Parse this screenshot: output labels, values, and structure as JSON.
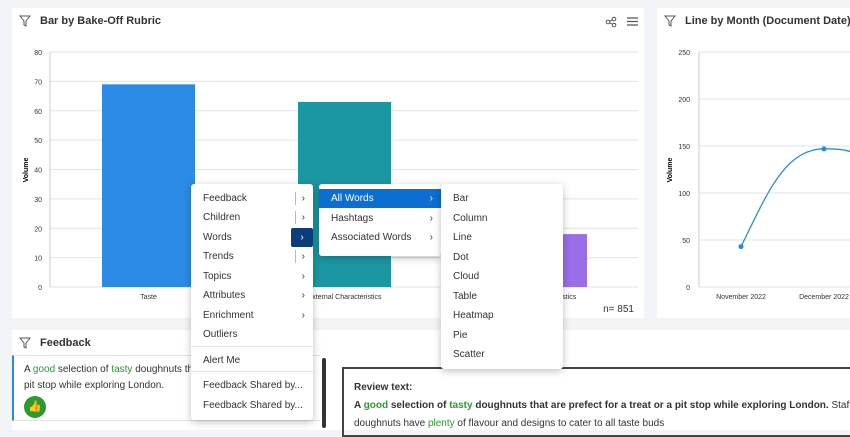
{
  "bar_panel": {
    "title": "Bar by Bake-Off Rubric",
    "n_label": "n= 851"
  },
  "line_panel": {
    "title": "Line by Month (Document Date)"
  },
  "chart_data": [
    {
      "type": "bar",
      "title": "Bar by Bake-Off Rubric",
      "ylabel": "Volume",
      "ylim": [
        0,
        80
      ],
      "yticks": [
        "0",
        "10",
        "20",
        "30",
        "40",
        "50",
        "60",
        "70",
        "80"
      ],
      "categories": [
        "Taste",
        "External Characteristics",
        "Internal Characteristics"
      ],
      "values": [
        69,
        63,
        18
      ],
      "colors": [
        "#2a8ae6",
        "#1b97a3",
        "#9a6ee8"
      ],
      "grid": true
    },
    {
      "type": "line",
      "title": "Line by Month (Document Date)",
      "ylabel": "Volume",
      "ylim": [
        0,
        250
      ],
      "yticks": [
        "0",
        "50",
        "100",
        "150",
        "200",
        "250"
      ],
      "categories": [
        "November 2022",
        "December 2022"
      ],
      "values": [
        43,
        147
      ],
      "color": "#2a8ae6",
      "grid": true
    }
  ],
  "context_menu": {
    "items": [
      {
        "label": "Feedback",
        "sub": true
      },
      {
        "label": "Children",
        "sub": true
      },
      {
        "label": "Words",
        "sub": true,
        "active": true
      },
      {
        "label": "Trends",
        "sub": true
      },
      {
        "label": "Topics",
        "sub": true
      },
      {
        "label": "Attributes",
        "sub": true
      },
      {
        "label": "Enrichment",
        "sub": true
      },
      {
        "label": "Outliers"
      },
      {
        "label": "Alert Me"
      },
      {
        "label": "Feedback Shared by..."
      },
      {
        "label": "Feedback Shared by..."
      }
    ]
  },
  "words_menu": {
    "items": [
      "All Words",
      "Hashtags",
      "Associated Words"
    ]
  },
  "chart_type_menu": {
    "items": [
      "Bar",
      "Column",
      "Line",
      "Dot",
      "Cloud",
      "Table",
      "Heatmap",
      "Pie",
      "Scatter"
    ]
  },
  "feedback": {
    "title": "Feedback",
    "card": {
      "p1": "A ",
      "w1": "good",
      "p2": " selection of ",
      "w2": "tasty",
      "p3": " doughnuts th",
      "line2": "pit stop while exploring London."
    },
    "review": {
      "label": "Review text:",
      "p1": "A ",
      "w1": "good",
      "p2": " selection of ",
      "w2": "tasty",
      "p3": " doughnuts that are prefect for a treat or a pit stop while exploring London.",
      "p4": " Staff are",
      "l2a": "doughnuts have ",
      "w3": "plenty",
      "l2b": " of flavour and designs to cater to all taste buds"
    }
  },
  "colors": {
    "accent": "#0b6fd1",
    "menu_active": "#0a3d7a",
    "positive": "#2d9a2d"
  }
}
